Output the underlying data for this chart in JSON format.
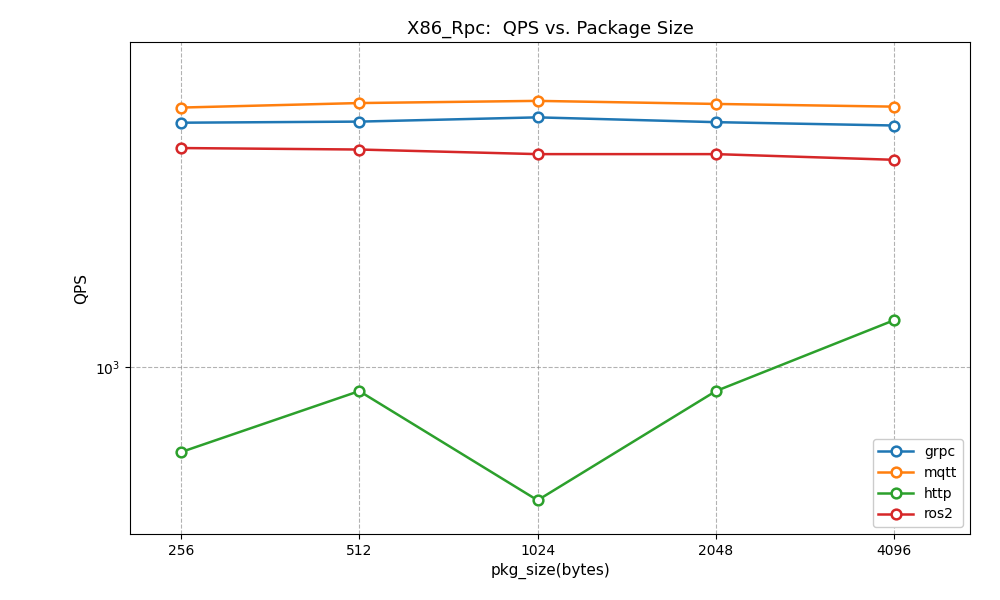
{
  "title": "X86_Rpc:  QPS vs. Package Size",
  "xlabel": "pkg_size(bytes)",
  "ylabel": "QPS",
  "x_values": [
    256,
    512,
    1024,
    2048,
    4096
  ],
  "series": {
    "grpc": {
      "values": [
        16000,
        16200,
        17000,
        16100,
        15500
      ],
      "color": "#1f77b4",
      "marker": "o"
    },
    "mqtt": {
      "values": [
        19000,
        20000,
        20500,
        19800,
        19200
      ],
      "color": "#ff7f0e",
      "marker": "o"
    },
    "http": {
      "values": [
        380,
        760,
        220,
        760,
        1700
      ],
      "color": "#2ca02c",
      "marker": "o"
    },
    "ros2": {
      "values": [
        12000,
        11800,
        11200,
        11200,
        10500
      ],
      "color": "#d62728",
      "marker": "o"
    }
  },
  "legend_order": [
    "grpc",
    "mqtt",
    "http",
    "ros2"
  ],
  "ylim": [
    150,
    40000
  ],
  "xlim_log": [
    210,
    5500
  ],
  "figsize": [
    10,
    6
  ],
  "dpi": 100,
  "subplot_adjust": [
    0.13,
    0.11,
    0.97,
    0.93
  ]
}
